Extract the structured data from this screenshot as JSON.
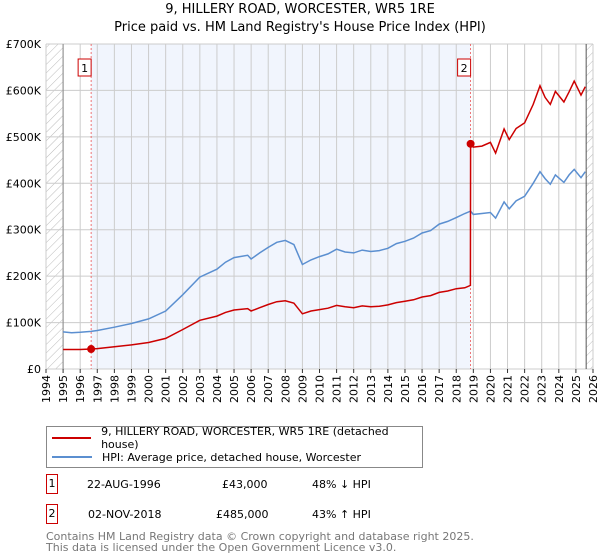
{
  "chart_data": {
    "type": "line",
    "title": "9, HILLERY ROAD, WORCESTER, WR5 1RE",
    "subtitle": "Price paid vs. HM Land Registry's House Price Index (HPI)",
    "xlim": [
      1994,
      2026
    ],
    "ylim": [
      0,
      700000
    ],
    "x_ticks": [
      "1994",
      "1995",
      "1996",
      "1997",
      "1998",
      "1999",
      "2000",
      "2001",
      "2002",
      "2003",
      "2004",
      "2005",
      "2006",
      "2007",
      "2008",
      "2009",
      "2010",
      "2011",
      "2012",
      "2013",
      "2014",
      "2015",
      "2016",
      "2017",
      "2018",
      "2019",
      "2020",
      "2021",
      "2022",
      "2023",
      "2024",
      "2025",
      "2026"
    ],
    "y_ticks": [
      {
        "value": 0,
        "label": "£0"
      },
      {
        "value": 100000,
        "label": "£100K"
      },
      {
        "value": 200000,
        "label": "£200K"
      },
      {
        "value": 300000,
        "label": "£300K"
      },
      {
        "value": 400000,
        "label": "£400K"
      },
      {
        "value": 500000,
        "label": "£500K"
      },
      {
        "value": 600000,
        "label": "£600K"
      },
      {
        "value": 700000,
        "label": "£700K"
      }
    ],
    "grid": true,
    "series": [
      {
        "name": "9, HILLERY ROAD, WORCESTER, WR5 1RE (detached house)",
        "color": "#cc0000",
        "x": [
          1995,
          1996,
          1996.64,
          1997,
          1998,
          1999,
          2000,
          2001,
          2002,
          2003,
          2004,
          2004.5,
          2005,
          2005.8,
          2006,
          2006.5,
          2007,
          2007.5,
          2008,
          2008.5,
          2009,
          2009.5,
          2010,
          2010.5,
          2011,
          2011.5,
          2012,
          2012.5,
          2013,
          2013.5,
          2014,
          2014.5,
          2015,
          2015.5,
          2016,
          2016.5,
          2017,
          2017.5,
          2018,
          2018.5,
          2018.83,
          2018.84,
          2019,
          2019.5,
          2020,
          2020.3,
          2020.8,
          2021.1,
          2021.5,
          2022,
          2022.5,
          2022.9,
          2023.2,
          2023.5,
          2023.8,
          2024.3,
          2024.6,
          2024.9,
          2025.3,
          2025.55
        ],
        "y": [
          42000,
          42000,
          43000,
          44000,
          48000,
          52000,
          57000,
          66000,
          85000,
          105000,
          114000,
          122000,
          127000,
          130000,
          125000,
          132000,
          139000,
          145000,
          147000,
          142000,
          119000,
          125000,
          128000,
          131000,
          137000,
          134000,
          132000,
          136000,
          134000,
          135000,
          138000,
          143000,
          146000,
          149000,
          155000,
          158000,
          165000,
          168000,
          173000,
          175000,
          180000,
          485000,
          478000,
          480000,
          488000,
          465000,
          517000,
          494000,
          518000,
          530000,
          570000,
          610000,
          585000,
          570000,
          598000,
          575000,
          597000,
          620000,
          590000,
          608000
        ]
      },
      {
        "name": "HPI: Average price, detached house, Worcester",
        "color": "#5b8fd0",
        "x": [
          1995,
          1995.5,
          1996,
          1996.64,
          1997,
          1998,
          1999,
          2000,
          2001,
          2002,
          2003,
          2004,
          2004.5,
          2005,
          2005.8,
          2006,
          2006.5,
          2007,
          2007.5,
          2008,
          2008.5,
          2009,
          2009.5,
          2010,
          2010.5,
          2011,
          2011.5,
          2012,
          2012.5,
          2013,
          2013.5,
          2014,
          2014.5,
          2015,
          2015.5,
          2016,
          2016.5,
          2017,
          2017.5,
          2018,
          2018.5,
          2018.84,
          2019,
          2019.5,
          2020,
          2020.3,
          2020.8,
          2021.1,
          2021.5,
          2022,
          2022.5,
          2022.9,
          2023.2,
          2023.5,
          2023.8,
          2024.3,
          2024.6,
          2024.9,
          2025.3,
          2025.55
        ],
        "y": [
          80000,
          78000,
          79000,
          81000,
          83000,
          90000,
          98000,
          108000,
          125000,
          160000,
          198000,
          215000,
          230000,
          240000,
          245000,
          237000,
          250000,
          262000,
          273000,
          277000,
          268000,
          225000,
          235000,
          242000,
          248000,
          258000,
          252000,
          250000,
          256000,
          253000,
          255000,
          260000,
          270000,
          275000,
          282000,
          293000,
          298000,
          312000,
          318000,
          326000,
          335000,
          340000,
          333000,
          335000,
          337000,
          325000,
          360000,
          345000,
          362000,
          372000,
          400000,
          425000,
          410000,
          398000,
          418000,
          402000,
          418000,
          430000,
          412000,
          425000
        ]
      }
    ],
    "sales": [
      {
        "label": "1",
        "x": 1996.64,
        "y": 43000
      },
      {
        "label": "2",
        "x": 2018.84,
        "y": 485000
      }
    ],
    "legend_placement": "bottom"
  },
  "legend": {
    "property": "9, HILLERY ROAD, WORCESTER, WR5 1RE (detached house)",
    "hpi": "HPI: Average price, detached house, Worcester"
  },
  "transactions": [
    {
      "num": "1",
      "date": "22-AUG-1996",
      "price": "£43,000",
      "hpi": "48% ↓ HPI"
    },
    {
      "num": "2",
      "date": "02-NOV-2018",
      "price": "£485,000",
      "hpi": "43% ↑ HPI"
    }
  ],
  "footer": {
    "line1": "Contains HM Land Registry data © Crown copyright and database right 2025.",
    "line2": "This data is licensed under the Open Government Licence v3.0."
  }
}
